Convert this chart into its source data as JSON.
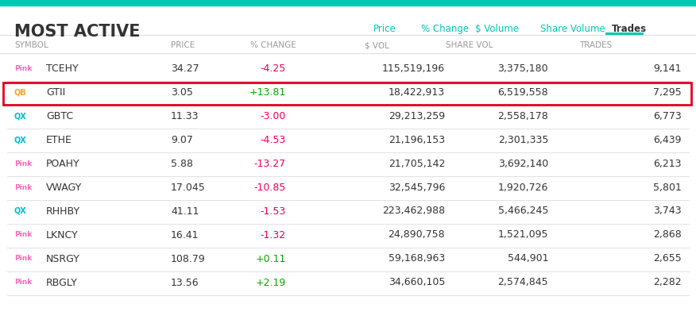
{
  "title": "MOST ACTIVE",
  "header_links": [
    "Price",
    "% Change",
    "$ Volume",
    "Share Volume",
    "Trades"
  ],
  "col_headers": [
    "SYMBOL",
    "PRICE",
    "% CHANGE",
    "$ VOL",
    "SHARE VOL",
    "TRADES"
  ],
  "rows": [
    {
      "badge": "Pink",
      "badge_color": "#ff69b4",
      "symbol": "TCEHY",
      "price": "34.27",
      "change": "-4.25",
      "svol": "115,519,196",
      "sharevol": "3,375,180",
      "trades": "9,141",
      "change_color": "#e05",
      "highlight": false
    },
    {
      "badge": "QB",
      "badge_color": "#f5a623",
      "symbol": "GTII",
      "price": "3.05",
      "change": "+13.81",
      "svol": "18,422,913",
      "sharevol": "6,519,558",
      "trades": "7,295",
      "change_color": "#00aa00",
      "highlight": true
    },
    {
      "badge": "QX",
      "badge_color": "#00bcd4",
      "symbol": "GBTC",
      "price": "11.33",
      "change": "-3.00",
      "svol": "29,213,259",
      "sharevol": "2,558,178",
      "trades": "6,773",
      "change_color": "#e05",
      "highlight": false
    },
    {
      "badge": "QX",
      "badge_color": "#00bcd4",
      "symbol": "ETHE",
      "price": "9.07",
      "change": "-4.53",
      "svol": "21,196,153",
      "sharevol": "2,301,335",
      "trades": "6,439",
      "change_color": "#e05",
      "highlight": false
    },
    {
      "badge": "Pink",
      "badge_color": "#ff69b4",
      "symbol": "POAHY",
      "price": "5.88",
      "change": "-13.27",
      "svol": "21,705,142",
      "sharevol": "3,692,140",
      "trades": "6,213",
      "change_color": "#e05",
      "highlight": false
    },
    {
      "badge": "Pink",
      "badge_color": "#ff69b4",
      "symbol": "VWAGY",
      "price": "17.045",
      "change": "-10.85",
      "svol": "32,545,796",
      "sharevol": "1,920,726",
      "trades": "5,801",
      "change_color": "#e05",
      "highlight": false
    },
    {
      "badge": "QX",
      "badge_color": "#00bcd4",
      "symbol": "RHHBY",
      "price": "41.11",
      "change": "-1.53",
      "svol": "223,462,988",
      "sharevol": "5,466,245",
      "trades": "3,743",
      "change_color": "#e05",
      "highlight": false
    },
    {
      "badge": "Pink",
      "badge_color": "#ff69b4",
      "symbol": "LKNCY",
      "price": "16.41",
      "change": "-1.32",
      "svol": "24,890,758",
      "sharevol": "1,521,095",
      "trades": "2,868",
      "change_color": "#e05",
      "highlight": false
    },
    {
      "badge": "Pink",
      "badge_color": "#ff69b4",
      "symbol": "NSRGY",
      "price": "108.79",
      "change": "+0.11",
      "svol": "59,168,963",
      "sharevol": "544,901",
      "trades": "2,655",
      "change_color": "#00aa00",
      "highlight": false
    },
    {
      "badge": "Pink",
      "badge_color": "#ff69b4",
      "symbol": "RBGLY",
      "price": "13.56",
      "change": "+2.19",
      "svol": "34,660,105",
      "sharevol": "2,574,845",
      "trades": "2,282",
      "change_color": "#00aa00",
      "highlight": false
    }
  ],
  "top_bar_color": "#00c9b1",
  "highlight_border_color": "#e00020",
  "header_active_color": "#00c9b1",
  "bg_color": "#ffffff",
  "col_header_color": "#999999",
  "text_color": "#333333",
  "divider_color": "#dddddd"
}
